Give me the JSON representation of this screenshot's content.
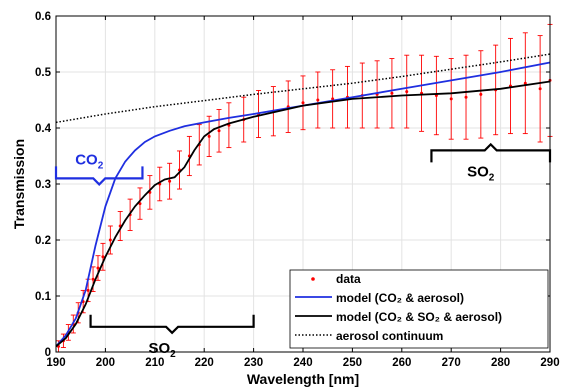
{
  "chart_data": {
    "type": "scatter",
    "xlabel": "Wavelength [nm]",
    "ylabel": "Transmission",
    "xlim": [
      190,
      290
    ],
    "ylim": [
      0,
      0.6
    ],
    "x_ticks": [
      190,
      200,
      210,
      220,
      230,
      240,
      250,
      260,
      270,
      280,
      290
    ],
    "y_ticks": [
      0,
      0.1,
      0.2,
      0.3,
      0.4,
      0.5,
      0.6
    ],
    "x_tick_labels": [
      "190",
      "200",
      "210",
      "220",
      "230",
      "240",
      "250",
      "260",
      "270",
      "280",
      "290"
    ],
    "y_tick_labels": [
      "0",
      "0.1",
      "0.2",
      "0.3",
      "0.4",
      "0.5",
      "0.6"
    ],
    "grid": true,
    "legend_position": "bottom-right",
    "series": [
      {
        "name": "data",
        "kind": "points-with-errorbars",
        "color": "#ff0000",
        "x": [
          190.5,
          191.5,
          192.5,
          193.5,
          194.5,
          195.5,
          196.5,
          197.5,
          198.5,
          199.5,
          201,
          203,
          205,
          207,
          209,
          211,
          213,
          215,
          217,
          219,
          221,
          223,
          225,
          228,
          231,
          234,
          237,
          240,
          243,
          246,
          249,
          252,
          255,
          258,
          261,
          264,
          267,
          270,
          273,
          276,
          279,
          282,
          285,
          288,
          290
        ],
        "y": [
          0.01,
          0.02,
          0.035,
          0.05,
          0.07,
          0.09,
          0.11,
          0.13,
          0.15,
          0.17,
          0.2,
          0.225,
          0.245,
          0.265,
          0.285,
          0.3,
          0.305,
          0.325,
          0.35,
          0.37,
          0.385,
          0.395,
          0.405,
          0.415,
          0.425,
          0.43,
          0.438,
          0.445,
          0.45,
          0.452,
          0.455,
          0.458,
          0.46,
          0.462,
          0.465,
          0.462,
          0.458,
          0.452,
          0.455,
          0.46,
          0.468,
          0.475,
          0.48,
          0.47,
          0.485
        ],
        "err": [
          0.01,
          0.012,
          0.014,
          0.016,
          0.018,
          0.02,
          0.02,
          0.022,
          0.022,
          0.024,
          0.025,
          0.026,
          0.028,
          0.028,
          0.03,
          0.03,
          0.032,
          0.034,
          0.035,
          0.036,
          0.036,
          0.038,
          0.04,
          0.04,
          0.042,
          0.044,
          0.046,
          0.048,
          0.05,
          0.052,
          0.055,
          0.058,
          0.06,
          0.062,
          0.065,
          0.068,
          0.07,
          0.072,
          0.075,
          0.078,
          0.08,
          0.085,
          0.09,
          0.095,
          0.1
        ]
      },
      {
        "name": "model (CO₂ & aerosol)",
        "kind": "line",
        "color": "#1f2fe0",
        "x": [
          190,
          192,
          194,
          196,
          198,
          200,
          202,
          204,
          206,
          208,
          210,
          213,
          216,
          220,
          225,
          230,
          240,
          250,
          260,
          270,
          280,
          290
        ],
        "y": [
          0.01,
          0.03,
          0.06,
          0.11,
          0.19,
          0.26,
          0.31,
          0.34,
          0.36,
          0.375,
          0.385,
          0.395,
          0.403,
          0.41,
          0.418,
          0.425,
          0.44,
          0.455,
          0.47,
          0.485,
          0.5,
          0.517
        ]
      },
      {
        "name": "model (CO₂ & SO₂ & aerosol)",
        "kind": "line",
        "color": "#000000",
        "x": [
          190,
          192,
          194,
          196,
          198,
          200,
          202,
          204,
          206,
          208,
          210,
          212,
          214,
          216,
          218,
          220,
          222,
          225,
          230,
          240,
          250,
          260,
          270,
          280,
          290
        ],
        "y": [
          0.01,
          0.025,
          0.05,
          0.085,
          0.13,
          0.17,
          0.205,
          0.235,
          0.26,
          0.28,
          0.298,
          0.308,
          0.312,
          0.33,
          0.36,
          0.385,
          0.398,
          0.408,
          0.42,
          0.44,
          0.452,
          0.458,
          0.462,
          0.47,
          0.483
        ]
      },
      {
        "name": "aerosol continuum",
        "kind": "dotted-line",
        "color": "#000000",
        "x": [
          190,
          200,
          210,
          220,
          230,
          240,
          250,
          260,
          270,
          280,
          290
        ],
        "y": [
          0.41,
          0.425,
          0.438,
          0.449,
          0.46,
          0.47,
          0.48,
          0.492,
          0.505,
          0.518,
          0.532
        ]
      }
    ],
    "annotations": [
      {
        "label": "CO",
        "sub": "2",
        "color": "#1f2fe0",
        "x_range": [
          190,
          207.5
        ],
        "y": 0.31,
        "bracket": "up"
      },
      {
        "label": "SO",
        "sub": "2",
        "color": "#000000",
        "x_range": [
          197,
          230
        ],
        "y": 0.045,
        "bracket": "up"
      },
      {
        "label": "SO",
        "sub": "2",
        "color": "#000000",
        "x_range": [
          266,
          290
        ],
        "y": 0.36,
        "bracket": "down"
      }
    ]
  }
}
